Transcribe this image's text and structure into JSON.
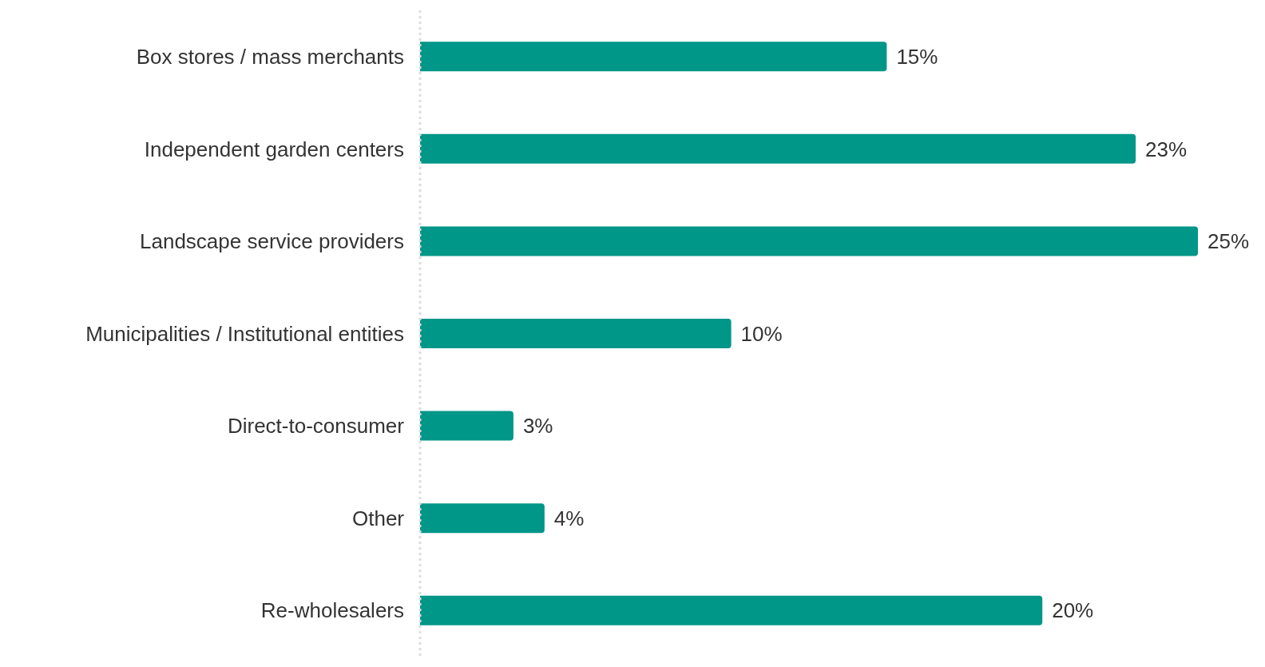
{
  "chart_data": {
    "type": "bar",
    "orientation": "horizontal",
    "categories": [
      "Box stores / mass merchants",
      "Independent garden centers",
      "Landscape service providers",
      "Municipalities / Institutional entities",
      "Direct-to-consumer",
      "Other",
      "Re-wholesalers"
    ],
    "values": [
      15,
      23,
      25,
      10,
      3,
      4,
      20
    ],
    "value_labels": [
      "15%",
      "23%",
      "25%",
      "10%",
      "3%",
      "4%",
      "20%"
    ],
    "color": "#009688",
    "tick_labels": "y"
  }
}
